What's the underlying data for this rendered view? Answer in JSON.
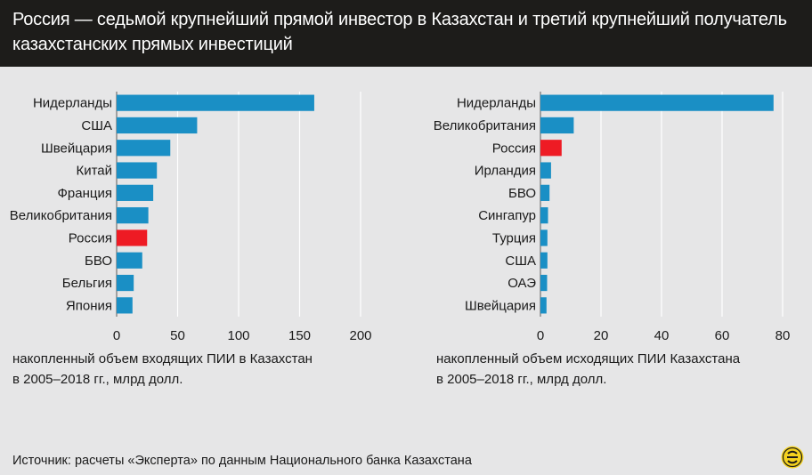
{
  "header": {
    "title": "Россия — седьмой крупнейший прямой инвестор в Казахстан и третий крупнейший получатель казахстанских прямых инвестиций"
  },
  "colors": {
    "bar": "#1a8fc5",
    "highlight": "#ee1b24",
    "grid": "#ffffff"
  },
  "chart_data": [
    {
      "type": "bar",
      "orientation": "horizontal",
      "categories": [
        "Нидерланды",
        "США",
        "Швейцария",
        "Китай",
        "Франция",
        "Великобритания",
        "Россия",
        "БВО",
        "Бельгия",
        "Япония"
      ],
      "values": [
        162,
        66,
        44,
        33,
        30,
        26,
        25,
        21,
        14,
        13
      ],
      "highlight": "Россия",
      "xlim": [
        0,
        200
      ],
      "xticks": [
        0,
        50,
        100,
        150,
        200
      ],
      "xlabel": "накопленный объем входящих ПИИ в Казахстан в 2005–2018 гг., млрд долл.",
      "xlabel_lines": [
        "накопленный объем входящих ПИИ в Казахстан",
        "в 2005–2018 гг., млрд долл."
      ],
      "grid": true
    },
    {
      "type": "bar",
      "orientation": "horizontal",
      "categories": [
        "Нидерланды",
        "Великобритания",
        "Россия",
        "Ирландия",
        "БВО",
        "Сингапур",
        "Турция",
        "США",
        "ОАЭ",
        "Швейцария"
      ],
      "values": [
        77,
        11,
        7,
        3.5,
        3,
        2.5,
        2.3,
        2.3,
        2.2,
        2
      ],
      "highlight": "Россия",
      "xlim": [
        0,
        80
      ],
      "xticks": [
        0,
        20,
        40,
        60,
        80
      ],
      "xlabel": "накопленный объем исходящих ПИИ Казахстана в 2005–2018 гг., млрд долл.",
      "xlabel_lines": [
        "накопленный объем исходящих ПИИ Казахстана",
        "в 2005–2018 гг., млрд долл."
      ],
      "grid": true
    }
  ],
  "source": "Источник: расчеты «Эксперта» по данным Национального банка Казахстана",
  "logo": {
    "icon": "expert-logo-icon"
  }
}
